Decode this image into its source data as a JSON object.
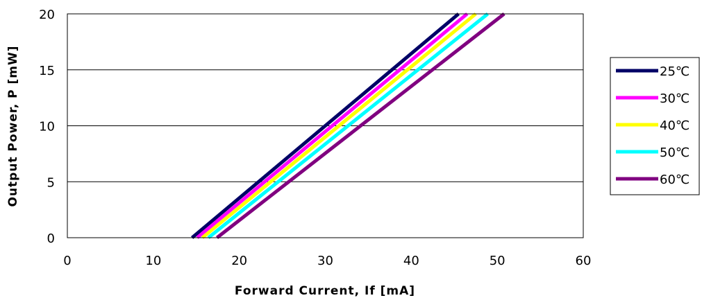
{
  "chart_data": {
    "type": "line",
    "title": "",
    "xlabel": "Forward Current, If [mA]",
    "ylabel": "Output Power, P [mW]",
    "xlim": [
      0,
      60
    ],
    "ylim": [
      0,
      20
    ],
    "xticks": [
      "0",
      "10",
      "20",
      "30",
      "40",
      "50",
      "60"
    ],
    "yticks": [
      "0",
      "5",
      "10",
      "15",
      "20"
    ],
    "grid": "horizontal",
    "legend_position": "right",
    "series": [
      {
        "name": "25℃",
        "color": "#000066",
        "x": [
          14.5,
          45.5
        ],
        "y": [
          0,
          20
        ]
      },
      {
        "name": "30℃",
        "color": "#ff00ff",
        "x": [
          15.1,
          46.5
        ],
        "y": [
          0,
          20
        ]
      },
      {
        "name": "40℃",
        "color": "#ffff00",
        "x": [
          15.7,
          47.5
        ],
        "y": [
          0,
          20
        ]
      },
      {
        "name": "50℃",
        "color": "#00ffff",
        "x": [
          16.4,
          48.9
        ],
        "y": [
          0,
          20
        ]
      },
      {
        "name": "60℃",
        "color": "#800080",
        "x": [
          17.4,
          50.8
        ],
        "y": [
          0,
          20
        ]
      }
    ]
  }
}
